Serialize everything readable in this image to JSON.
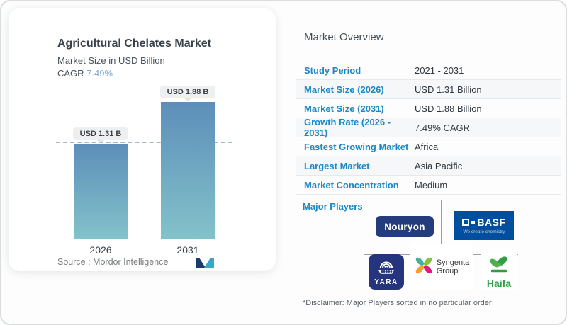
{
  "chart_card": {
    "title": "Agricultural Chelates Market",
    "subtitle": "Market Size in USD Billion",
    "cagr_label": "CAGR",
    "cagr_value": "7.49%",
    "bars": [
      {
        "year": "2026",
        "label": "USD 1.31 B"
      },
      {
        "year": "2031",
        "label": "USD 1.88 B"
      }
    ],
    "source_label": "Source :",
    "source_value": "Mordor Intelligence"
  },
  "chart_data": {
    "type": "bar",
    "title": "Agricultural Chelates Market",
    "subtitle": "Market Size in USD Billion",
    "unit": "USD Billion",
    "categories": [
      "2026",
      "2031"
    ],
    "values": [
      1.31,
      1.88
    ],
    "bar_labels": [
      "USD 1.31 B",
      "USD 1.88 B"
    ],
    "cagr": "7.49%",
    "ylim": [
      0,
      1.88
    ],
    "reference_line": 1.31,
    "grid": false,
    "source": "Mordor Intelligence"
  },
  "overview": {
    "title": "Market Overview",
    "rows": [
      {
        "label": "Study Period",
        "value": "2021 - 2031"
      },
      {
        "label": "Market Size (2026)",
        "value": "USD 1.31 Billion"
      },
      {
        "label": "Market Size (2031)",
        "value": "USD 1.88 Billion"
      },
      {
        "label": "Growth Rate (2026 - 2031)",
        "value": "7.49% CAGR"
      },
      {
        "label": "Fastest Growing Market",
        "value": "Africa"
      },
      {
        "label": "Largest Market",
        "value": "Asia Pacific"
      },
      {
        "label": "Market Concentration",
        "value": "Medium"
      }
    ],
    "major_players_label": "Major Players",
    "players": {
      "nouryon": {
        "name": "Nouryon"
      },
      "basf": {
        "name": "BASF",
        "tagline": "We create chemistry"
      },
      "yara": {
        "name": "YARA"
      },
      "syngenta": {
        "name_line1": "Syngenta",
        "name_line2": "Group"
      },
      "haifa": {
        "name": "Haifa"
      }
    },
    "disclaimer": "*Disclaimer: Major Players sorted in no particular order"
  },
  "colors": {
    "accent_blue": "#1b87c4",
    "cagr_blue": "#7caccf",
    "bar_gradient_top": "#5d8eb9",
    "bar_gradient_bottom": "#83c2ca",
    "dashed_line": "#a3bac9",
    "nouryon_navy": "#233d7c",
    "basf_blue": "#004f9f",
    "yara_navy": "#24357e",
    "haifa_green": "#2f9e45",
    "syngenta_teal": "#41b49b",
    "syngenta_lime": "#84c33c",
    "syngenta_amber": "#f2a12c",
    "syngenta_magenta": "#e3197b",
    "mordor_navy": "#1d3a6d",
    "mordor_teal": "#35a8c9"
  }
}
